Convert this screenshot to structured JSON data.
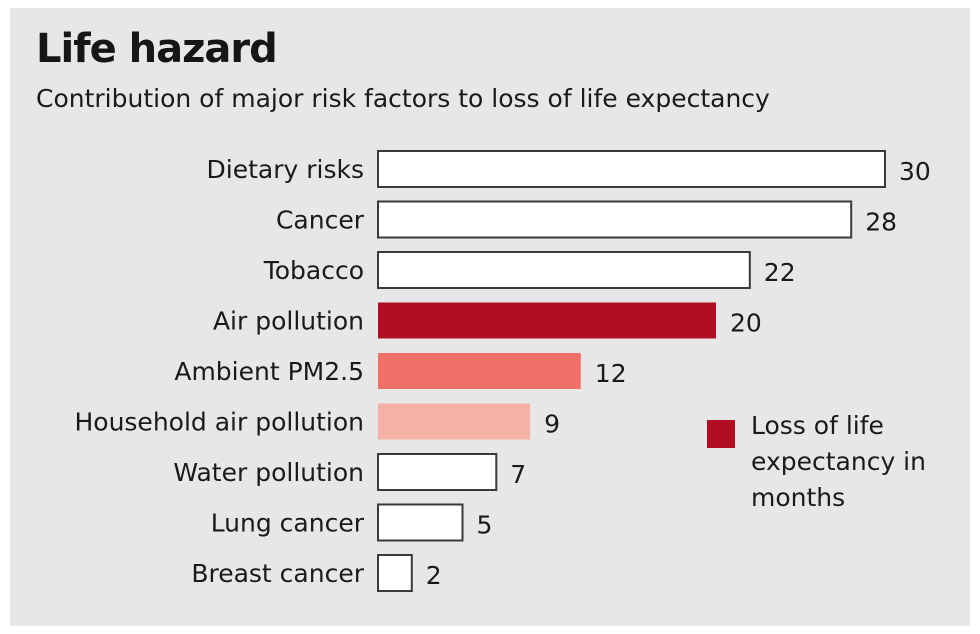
{
  "title": "Life hazard",
  "subtitle": "Contribution of major risk factors to loss of life expectancy",
  "legend": {
    "label": "Loss of life expectancy in months",
    "color": "#b00e22"
  },
  "colors": {
    "plain_fill": "#ffffff",
    "outline": "#3a3a3a",
    "air_pollution": "#b00e22",
    "ambient_pm25": "#f07068",
    "household_air_pollution": "#f6b1a5"
  },
  "chart_data": {
    "type": "bar",
    "orientation": "horizontal",
    "title": "Life hazard",
    "subtitle": "Contribution of major risk factors to loss of life expectancy",
    "xlabel": "",
    "ylabel": "",
    "xlim": [
      0,
      30
    ],
    "grid": false,
    "legend_position": "right",
    "categories": [
      "Dietary risks",
      "Cancer",
      "Tobacco",
      "Air pollution",
      "Ambient PM2.5",
      "Household air pollution",
      "Water pollution",
      "Lung cancer",
      "Breast cancer"
    ],
    "values": [
      30,
      28,
      22,
      20,
      12,
      9,
      7,
      5,
      2
    ],
    "bar_colors": [
      "#ffffff",
      "#ffffff",
      "#ffffff",
      "#b00e22",
      "#f07068",
      "#f6b1a5",
      "#ffffff",
      "#ffffff",
      "#ffffff"
    ]
  }
}
